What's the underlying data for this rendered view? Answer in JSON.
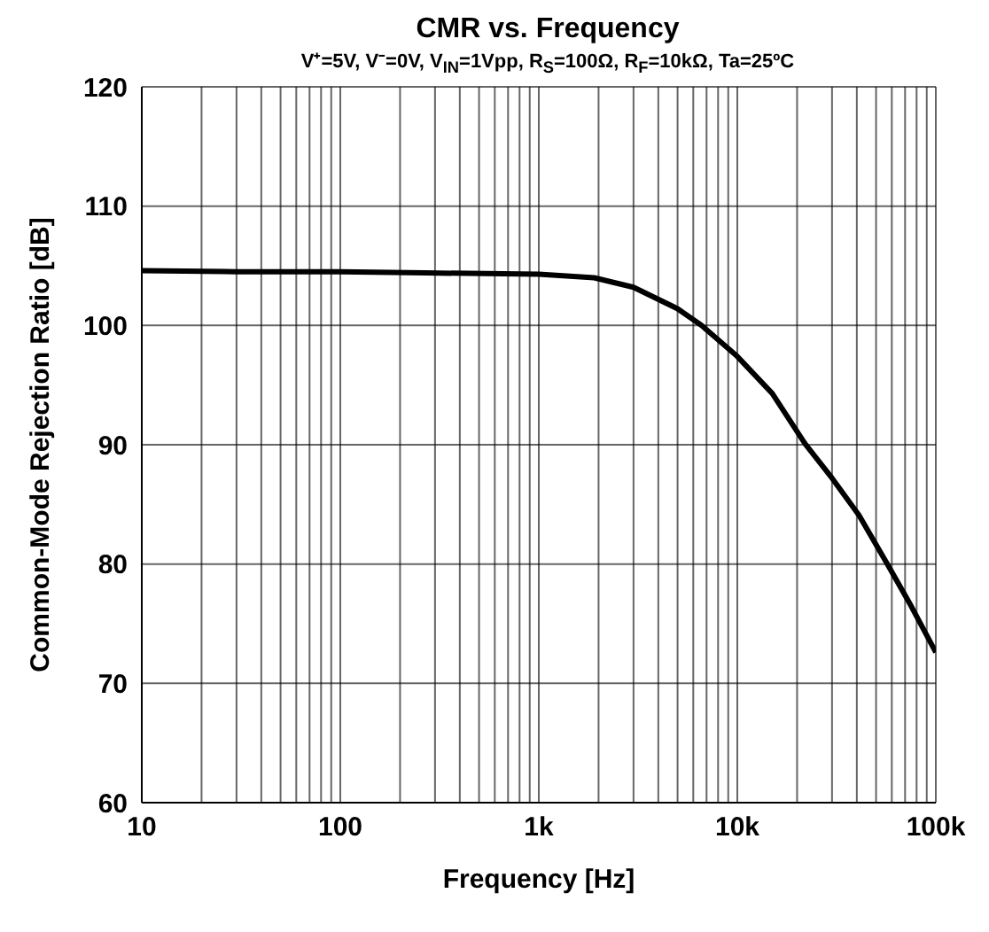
{
  "chart_data": {
    "type": "line",
    "title": "CMR vs. Frequency",
    "subtitle": "V⁺=5V, V⁻=0V, V$_{IN}$=1Vpp, R$_{S}$=100Ω, R$_{F}$=10kΩ, Ta=25ºC",
    "xlabel": "Frequency [Hz]",
    "ylabel": "Common-Mode Rejection Ratio [dB]",
    "log": "x",
    "x": [
      10,
      30,
      100,
      270,
      1000,
      1900,
      3000,
      5000,
      6600,
      10000,
      15000,
      21900,
      30000,
      41000,
      57000,
      75000,
      100000
    ],
    "series": [
      {
        "color": "#000000",
        "values": [
          104.6,
          104.5,
          104.5,
          104.4,
          104.3,
          104.0,
          103.2,
          101.4,
          100.0,
          97.4,
          94.3,
          90.1,
          87.2,
          84.1,
          80.0,
          76.5,
          72.6
        ]
      }
    ],
    "xlim": [
      10,
      100000
    ],
    "xticks": [
      10,
      {
        "value": 20,
        "label": null
      },
      {
        "value": 30,
        "label": null
      },
      {
        "value": 40,
        "label": null
      },
      {
        "value": 50,
        "label": null
      },
      {
        "value": 60,
        "label": null
      },
      {
        "value": 70,
        "label": null
      },
      {
        "value": 80,
        "label": null
      },
      {
        "value": 90,
        "label": null
      },
      100,
      {
        "value": 200,
        "label": null
      },
      {
        "value": 300,
        "label": null
      },
      {
        "value": 400,
        "label": null
      },
      {
        "value": 500,
        "label": null
      },
      {
        "value": 600,
        "label": null
      },
      {
        "value": 700,
        "label": null
      },
      {
        "value": 800,
        "label": null
      },
      {
        "value": 900,
        "label": null
      },
      {
        "value": 1000,
        "label": "1k"
      },
      {
        "value": 2000,
        "label": null
      },
      {
        "value": 3000,
        "label": null
      },
      {
        "value": 4000,
        "label": null
      },
      {
        "value": 5000,
        "label": null
      },
      {
        "value": 6000,
        "label": null
      },
      {
        "value": 7000,
        "label": null
      },
      {
        "value": 8000,
        "label": null
      },
      {
        "value": 9000,
        "label": null
      },
      {
        "value": 10000,
        "label": "10k"
      },
      {
        "value": 20000,
        "label": null
      },
      {
        "value": 30000,
        "label": null
      },
      {
        "value": 40000,
        "label": null
      },
      {
        "value": 50000,
        "label": null
      },
      {
        "value": 60000,
        "label": null
      },
      {
        "value": 70000,
        "label": null
      },
      {
        "value": 80000,
        "label": null
      },
      {
        "value": 90000,
        "label": null
      },
      {
        "value": 100000,
        "label": "100k"
      }
    ],
    "ylim": [
      60,
      120
    ],
    "yticks": [
      60,
      70,
      80,
      90,
      100,
      110,
      120
    ],
    "grid": true,
    "marker": "none",
    "line_style": "solid"
  }
}
